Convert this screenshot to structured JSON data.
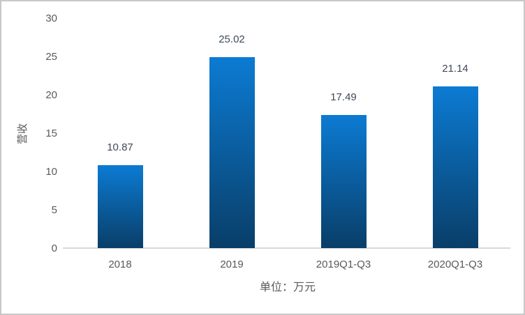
{
  "chart_data": {
    "type": "bar",
    "title": "",
    "categories": [
      "2018",
      "2019",
      "2019Q1-Q3",
      "2020Q1-Q3"
    ],
    "values": [
      10.87,
      25.02,
      17.49,
      21.14
    ],
    "data_labels": [
      "10.87",
      "25.02",
      "17.49",
      "21.14"
    ],
    "xlabel": "单位：万元",
    "ylabel": "营收",
    "ylim": [
      0,
      30
    ],
    "yticks": [
      "0",
      "5",
      "10",
      "15",
      "20",
      "25",
      "30"
    ],
    "ytick_values": [
      0,
      5,
      10,
      15,
      20,
      25,
      30
    ],
    "grid": false,
    "legend": null,
    "colors": {
      "bar_gradient_top": "#0c7bd3",
      "bar_gradient_bottom": "#093e68",
      "axis_line": "#d9d9d9",
      "tick_label": "#595959",
      "data_label": "#3f4a5a",
      "frame_border": "#c8c8c8",
      "background": "#ffffff"
    }
  }
}
